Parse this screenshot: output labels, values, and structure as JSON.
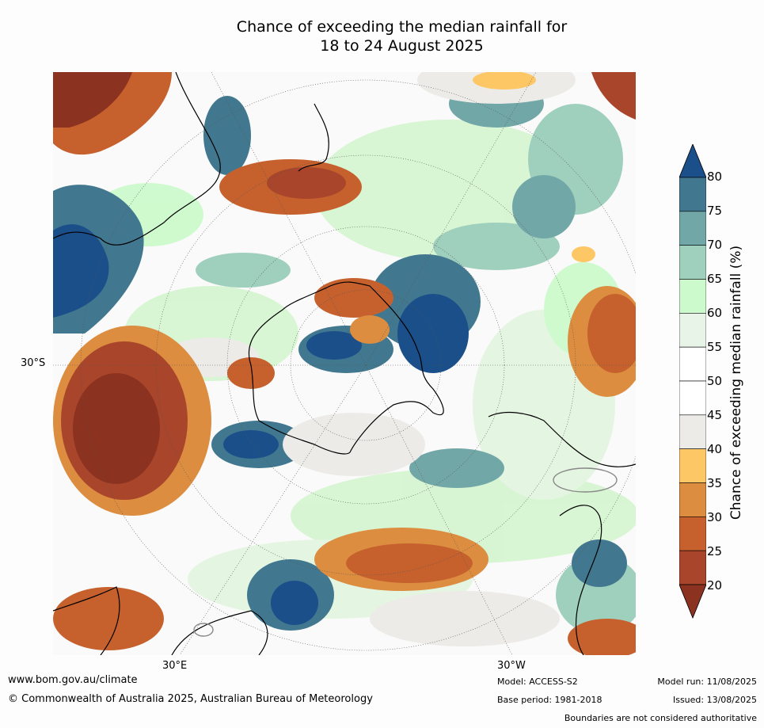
{
  "title": {
    "line1": "Chance of exceeding the median rainfall for",
    "line2": "18 to 24 August 2025"
  },
  "map": {
    "lat_label": "30°S",
    "lon_labels": [
      "30°E",
      "30°W"
    ]
  },
  "colorbar": {
    "title": "Chance of exceeding median rainfall (%)",
    "ticks": [
      "80",
      "75",
      "70",
      "65",
      "60",
      "55",
      "50",
      "45",
      "40",
      "35",
      "30",
      "25",
      "20"
    ],
    "colors_top_to_bottom": [
      "#1a4f8a",
      "#42788f",
      "#72a7a8",
      "#9fcfbd",
      "#ccfacc",
      "#e8f4e8",
      "#ffffff",
      "#ffffff",
      "#ecebe7",
      "#fec765",
      "#dc8d40",
      "#c6612e",
      "#a9452b",
      "#8b3220"
    ]
  },
  "footer": {
    "website": "www.bom.gov.au/climate",
    "copyright": "© Commonwealth of Australia 2025, Australian Bureau of Meteorology",
    "model": "Model: ACCESS-S2",
    "base_period": "Base period: 1981-2018",
    "model_run": "Model run: 11/08/2025",
    "issued": "Issued: 13/08/2025",
    "disclaimer": "Boundaries are not considered authoritative"
  }
}
